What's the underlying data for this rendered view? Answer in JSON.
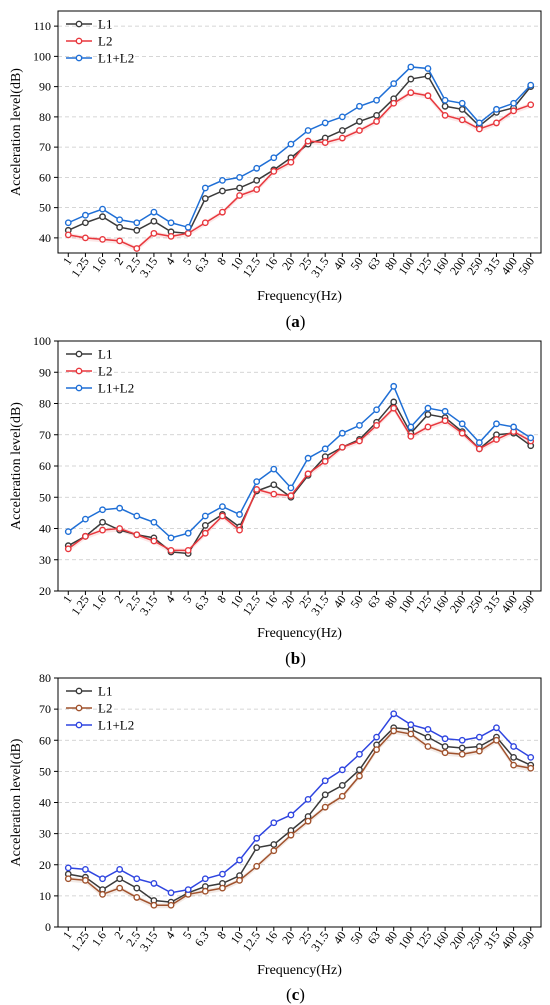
{
  "chart_data": [
    {
      "type": "line",
      "caption": "(a)",
      "xlabel": "Frequency(Hz)",
      "ylabel": "Acceleration level(dB)",
      "ylim": [
        35,
        115
      ],
      "yticks": [
        40,
        50,
        60,
        70,
        80,
        90,
        100,
        110
      ],
      "categories": [
        "1",
        "1.25",
        "1.6",
        "2",
        "2.5",
        "3.15",
        "4",
        "5",
        "6.3",
        "8",
        "10",
        "12.5",
        "16",
        "20",
        "25",
        "31.5",
        "40",
        "50",
        "63",
        "80",
        "100",
        "125",
        "160",
        "200",
        "250",
        "315",
        "400",
        "500"
      ],
      "grid": true,
      "legend_position": "top-left",
      "series": [
        {
          "name": "L1",
          "color": "#3a3a3a",
          "values": [
            42.5,
            45,
            47,
            43.5,
            42.5,
            45.5,
            42,
            41.5,
            53,
            55.5,
            56.5,
            59,
            62.5,
            66.5,
            71,
            73,
            75.5,
            78.5,
            80.5,
            86,
            92.5,
            93.5,
            83.5,
            82.5,
            77,
            81.5,
            83,
            90
          ]
        },
        {
          "name": "L2",
          "color": "#e8373d",
          "values": [
            41,
            40,
            39.5,
            39,
            36.5,
            41.5,
            40.5,
            41.5,
            45,
            48.5,
            54,
            56,
            62,
            65,
            72,
            71.5,
            73,
            75.5,
            78.5,
            84.5,
            88,
            87,
            80.5,
            79,
            76,
            78,
            82,
            84
          ]
        },
        {
          "name": "L1+L2",
          "color": "#1f6fd6",
          "values": [
            45,
            47.5,
            49.5,
            46,
            45,
            48.5,
            45,
            43.5,
            56.5,
            59,
            60,
            63,
            66.5,
            71,
            75.5,
            78,
            80,
            83.5,
            85.5,
            91,
            96.5,
            96,
            85.5,
            84.5,
            78,
            82.5,
            84.5,
            90.5
          ]
        }
      ]
    },
    {
      "type": "line",
      "caption": "(b)",
      "xlabel": "Frequency(Hz)",
      "ylabel": "Acceleration level(dB)",
      "ylim": [
        20,
        100
      ],
      "yticks": [
        20,
        30,
        40,
        50,
        60,
        70,
        80,
        90,
        100
      ],
      "categories": [
        "1",
        "1.25",
        "1.6",
        "2",
        "2.5",
        "3.15",
        "4",
        "5",
        "6.3",
        "8",
        "10",
        "12.5",
        "16",
        "20",
        "25",
        "31.5",
        "40",
        "50",
        "63",
        "80",
        "100",
        "125",
        "160",
        "200",
        "250",
        "315",
        "400",
        "500"
      ],
      "grid": true,
      "legend_position": "top-left",
      "series": [
        {
          "name": "L1",
          "color": "#3a3a3a",
          "values": [
            34.5,
            37.5,
            42,
            39.5,
            38,
            37,
            32.5,
            32,
            41,
            44.5,
            40.5,
            52,
            54,
            50,
            57,
            63,
            66,
            68.5,
            74,
            80.5,
            70.5,
            76.5,
            75.5,
            71,
            65.5,
            70,
            70.5,
            66.5
          ]
        },
        {
          "name": "L2",
          "color": "#e8373d",
          "values": [
            33.5,
            37.5,
            39.5,
            40,
            38,
            36,
            33,
            33,
            38.5,
            44,
            39.5,
            52.5,
            51,
            50.5,
            57.5,
            61.5,
            66,
            68,
            73,
            78.5,
            69.5,
            72.5,
            74.5,
            70.5,
            65.5,
            68.5,
            71,
            68
          ]
        },
        {
          "name": "L1+L2",
          "color": "#1f6fd6",
          "values": [
            39,
            43,
            46,
            46.5,
            44,
            42,
            37,
            38.5,
            44,
            47,
            44.5,
            55,
            59,
            53,
            62.5,
            65.5,
            70.5,
            73,
            78,
            85.5,
            72.5,
            78.5,
            77.5,
            73.5,
            67.5,
            73.5,
            72.5,
            69
          ]
        }
      ]
    },
    {
      "type": "line",
      "caption": "(c)",
      "xlabel": "Frequency(Hz)",
      "ylabel": "Acceleration level(dB)",
      "ylim": [
        0,
        80
      ],
      "yticks": [
        0,
        10,
        20,
        30,
        40,
        50,
        60,
        70,
        80
      ],
      "categories": [
        "1",
        "1.25",
        "1.6",
        "2",
        "2.5",
        "3.15",
        "4",
        "5",
        "6.3",
        "8",
        "10",
        "12.5",
        "16",
        "20",
        "25",
        "31.5",
        "40",
        "50",
        "63",
        "80",
        "100",
        "125",
        "160",
        "200",
        "250",
        "315",
        "400",
        "500"
      ],
      "grid": true,
      "legend_position": "top-left",
      "series": [
        {
          "name": "L1",
          "color": "#3a3a3a",
          "values": [
            17,
            16,
            12,
            15.5,
            12.5,
            8.5,
            8,
            11,
            13,
            14,
            16.5,
            25.5,
            26.5,
            31,
            35.5,
            42.5,
            45.5,
            50.5,
            58.5,
            64,
            63.5,
            61,
            58,
            57.5,
            58,
            61,
            54.5,
            52
          ]
        },
        {
          "name": "L2",
          "color": "#a0522d",
          "values": [
            15.5,
            15,
            10.5,
            12.5,
            9.5,
            7,
            7,
            10.5,
            11.5,
            12.5,
            15,
            19.5,
            24.5,
            29.5,
            34,
            38.5,
            42,
            48.5,
            57,
            63,
            62,
            58,
            56,
            55.5,
            56.5,
            60,
            52,
            51
          ]
        },
        {
          "name": "L1+L2",
          "color": "#2f45e0",
          "values": [
            19,
            18.5,
            15.5,
            18.5,
            15.5,
            14,
            11,
            12,
            15.5,
            17,
            21.5,
            28.5,
            33.5,
            36,
            41,
            47,
            50.5,
            55.5,
            61,
            68.5,
            65,
            63.5,
            60.5,
            60,
            61,
            64,
            58,
            54.5
          ]
        }
      ]
    }
  ]
}
